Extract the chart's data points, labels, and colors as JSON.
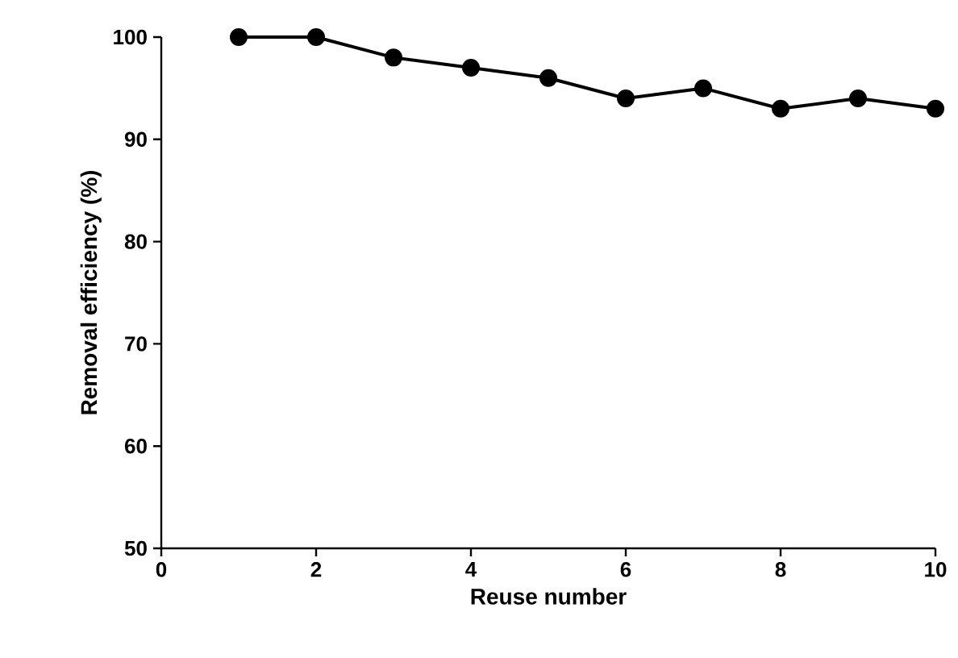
{
  "chart_data": {
    "type": "line",
    "xlabel": "Reuse number",
    "ylabel": "Removal efficiency (%)",
    "x": [
      1,
      2,
      3,
      4,
      5,
      6,
      7,
      8,
      9,
      10
    ],
    "series": [
      {
        "color": "#000000",
        "values": [
          100,
          100,
          98,
          97,
          96,
          94,
          95,
          93,
          94,
          93
        ]
      }
    ],
    "xlim": [
      0,
      10
    ],
    "xticks": [
      0,
      2,
      4,
      6,
      8,
      10
    ],
    "ylim": [
      50,
      100
    ],
    "yticks": [
      50,
      60,
      70,
      80,
      90,
      100
    ],
    "grid": false,
    "marker": "circle",
    "line_style": "solid"
  }
}
